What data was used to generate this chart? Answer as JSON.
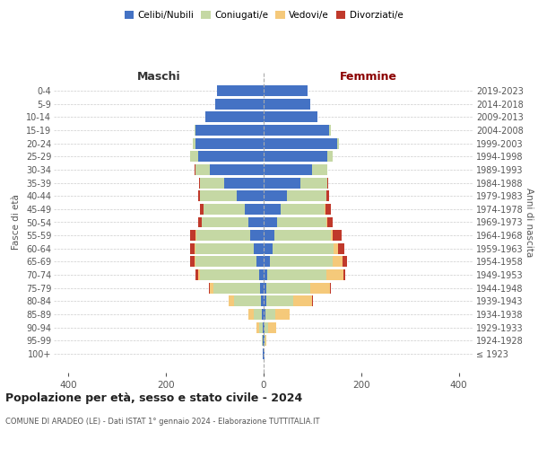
{
  "age_groups": [
    "100+",
    "95-99",
    "90-94",
    "85-89",
    "80-84",
    "75-79",
    "70-74",
    "65-69",
    "60-64",
    "55-59",
    "50-54",
    "45-49",
    "40-44",
    "35-39",
    "30-34",
    "25-29",
    "20-24",
    "15-19",
    "10-14",
    "5-9",
    "0-4"
  ],
  "birth_years": [
    "≤ 1923",
    "1924-1928",
    "1929-1933",
    "1934-1938",
    "1939-1943",
    "1944-1948",
    "1949-1953",
    "1954-1958",
    "1959-1963",
    "1964-1968",
    "1969-1973",
    "1974-1978",
    "1979-1983",
    "1984-1988",
    "1989-1993",
    "1994-1998",
    "1999-2003",
    "2004-2008",
    "2009-2013",
    "2014-2018",
    "2019-2023"
  ],
  "males": {
    "celibi": [
      1,
      1,
      2,
      3,
      5,
      8,
      10,
      14,
      20,
      28,
      32,
      38,
      55,
      80,
      110,
      135,
      140,
      140,
      120,
      100,
      95
    ],
    "coniugati": [
      1,
      2,
      8,
      18,
      55,
      95,
      120,
      125,
      120,
      110,
      95,
      85,
      75,
      50,
      30,
      15,
      5,
      2,
      0,
      0,
      0
    ],
    "vedovi": [
      0,
      1,
      5,
      10,
      12,
      8,
      5,
      3,
      1,
      1,
      0,
      0,
      0,
      0,
      0,
      0,
      0,
      0,
      0,
      0,
      0
    ],
    "divorziati": [
      0,
      0,
      0,
      0,
      0,
      2,
      5,
      8,
      10,
      12,
      8,
      8,
      5,
      2,
      1,
      0,
      0,
      0,
      0,
      0,
      0
    ]
  },
  "females": {
    "nubili": [
      1,
      1,
      2,
      3,
      5,
      6,
      8,
      12,
      18,
      22,
      28,
      35,
      48,
      75,
      100,
      130,
      150,
      135,
      110,
      95,
      90
    ],
    "coniugate": [
      0,
      2,
      8,
      20,
      55,
      90,
      120,
      130,
      125,
      115,
      100,
      90,
      80,
      55,
      30,
      12,
      5,
      2,
      0,
      0,
      0
    ],
    "vedove": [
      1,
      3,
      15,
      30,
      40,
      40,
      35,
      20,
      10,
      5,
      2,
      2,
      1,
      0,
      0,
      0,
      0,
      0,
      0,
      0,
      0
    ],
    "divorziate": [
      0,
      0,
      0,
      0,
      1,
      2,
      5,
      8,
      12,
      18,
      12,
      10,
      5,
      2,
      1,
      0,
      0,
      0,
      0,
      0,
      0
    ]
  },
  "colors": {
    "celibi": "#4472c4",
    "coniugati": "#c5d8a4",
    "vedovi": "#f5c97a",
    "divorziati": "#c0392b"
  },
  "title_main": "Popolazione per età, sesso e stato civile - 2024",
  "title_sub": "COMUNE DI ARADEO (LE) - Dati ISTAT 1° gennaio 2024 - Elaborazione TUTTITALIA.IT",
  "xlabel_left": "Maschi",
  "xlabel_right": "Femmine",
  "ylabel_left": "Fasce di età",
  "ylabel_right": "Anni di nascita",
  "xlim": 430,
  "bg_color": "#ffffff",
  "grid_color": "#cccccc",
  "bar_height": 0.82,
  "maschi_color": "#333333",
  "femmine_color": "#8b0000"
}
